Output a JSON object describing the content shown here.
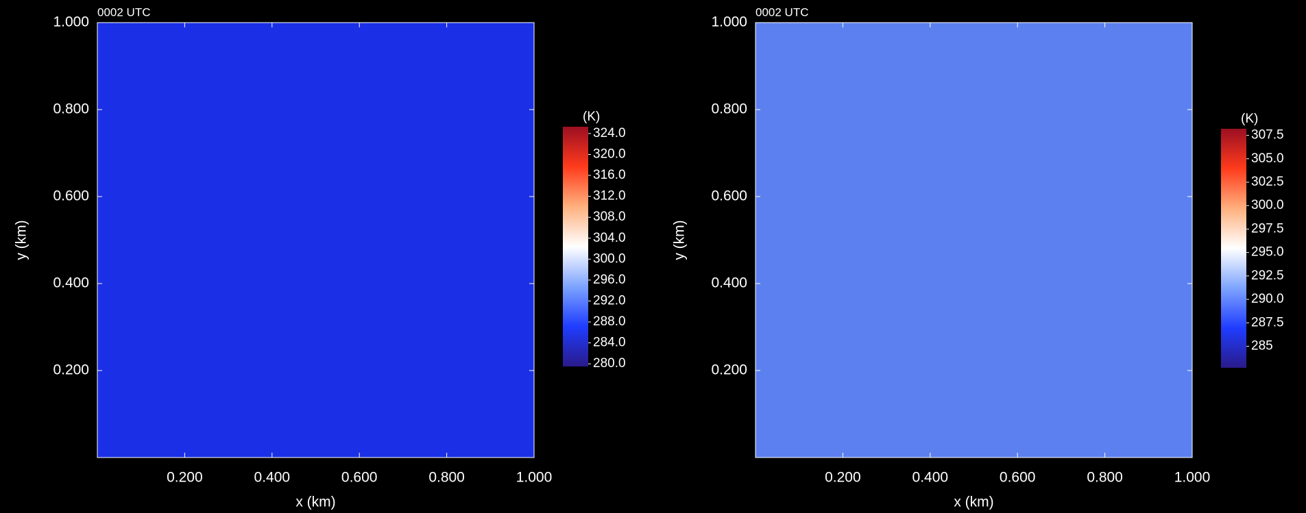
{
  "chart_data": [
    {
      "type": "heatmap",
      "title": "0002 UTC",
      "xlabel": "x (km)",
      "ylabel": "y (km)",
      "xlim": [
        0,
        1.0
      ],
      "ylim": [
        0,
        1.0
      ],
      "xticks": [
        {
          "value": 0.2,
          "label": "0.200"
        },
        {
          "value": 0.4,
          "label": "0.400"
        },
        {
          "value": 0.6,
          "label": "0.600"
        },
        {
          "value": 0.8,
          "label": "0.800"
        },
        {
          "value": 1.0,
          "label": "1.000"
        }
      ],
      "yticks": [
        {
          "value": 0.2,
          "label": "0.200"
        },
        {
          "value": 0.4,
          "label": "0.400"
        },
        {
          "value": 0.6,
          "label": "0.600"
        },
        {
          "value": 0.8,
          "label": "0.800"
        },
        {
          "value": 1.0,
          "label": "1.000"
        }
      ],
      "field_color": "#1b30e6",
      "colorbar_label": "(K)",
      "clim": [
        279.5,
        325.3
      ],
      "colorbar_ticks": [
        {
          "value": 280,
          "label": "280.0"
        },
        {
          "value": 284,
          "label": "284.0"
        },
        {
          "value": 288,
          "label": "288.0"
        },
        {
          "value": 292,
          "label": "292.0"
        },
        {
          "value": 296,
          "label": "296.0"
        },
        {
          "value": 300,
          "label": "300.0"
        },
        {
          "value": 304,
          "label": "304.0"
        },
        {
          "value": 308,
          "label": "308.0"
        },
        {
          "value": 312,
          "label": "312.0"
        },
        {
          "value": 316,
          "label": "316.0"
        },
        {
          "value": 320,
          "label": "320.0"
        },
        {
          "value": 324,
          "label": "324.0"
        }
      ],
      "colormap": [
        "#2a1a8a",
        "#1f3dff",
        "#7ea4ff",
        "#ffffff",
        "#ffb07e",
        "#ff3b1c",
        "#9c0f22"
      ]
    },
    {
      "type": "heatmap",
      "title": "0002 UTC",
      "xlabel": "x (km)",
      "ylabel": "y (km)",
      "xlim": [
        0,
        1.0
      ],
      "ylim": [
        0,
        1.0
      ],
      "xticks": [
        {
          "value": 0.2,
          "label": "0.200"
        },
        {
          "value": 0.4,
          "label": "0.400"
        },
        {
          "value": 0.6,
          "label": "0.600"
        },
        {
          "value": 0.8,
          "label": "0.800"
        },
        {
          "value": 1.0,
          "label": "1.000"
        }
      ],
      "yticks": [
        {
          "value": 0.2,
          "label": "0.200"
        },
        {
          "value": 0.4,
          "label": "0.400"
        },
        {
          "value": 0.6,
          "label": "0.600"
        },
        {
          "value": 0.8,
          "label": "0.800"
        },
        {
          "value": 1.0,
          "label": "1.000"
        }
      ],
      "field_color": "#5c80f0",
      "colorbar_label": "(K)",
      "clim": [
        282.7,
        308.2
      ],
      "colorbar_ticks": [
        285.0,
        287.5,
        {
          "value": 290,
          "label": "290.0"
        },
        292.5,
        {
          "value": 295,
          "label": "295.0"
        },
        297.5,
        {
          "value": 300,
          "label": "300.0"
        },
        302.5,
        {
          "value": 305,
          "label": "305.0"
        },
        307.5
      ],
      "colormap": [
        "#2a1a8a",
        "#1f3dff",
        "#7ea4ff",
        "#ffffff",
        "#ffb07e",
        "#ff3b1c",
        "#9c0f22"
      ]
    }
  ]
}
